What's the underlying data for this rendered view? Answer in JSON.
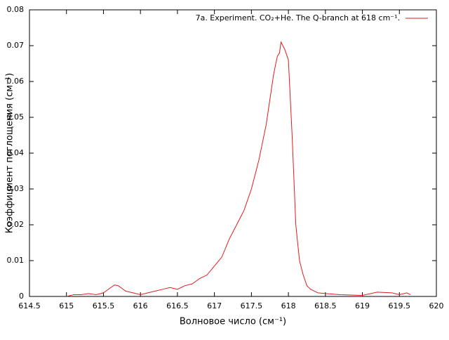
{
  "chart_data": {
    "type": "line",
    "x_label": "Волновое число (см⁻¹)",
    "y_label": "Коэффициент поглощения (см⁻¹)",
    "xlim": [
      614.5,
      620
    ],
    "ylim": [
      0,
      0.08
    ],
    "xticks": [
      614.5,
      615,
      615.5,
      616,
      616.5,
      617,
      617.5,
      618,
      618.5,
      619,
      619.5,
      620
    ],
    "yticks": [
      0,
      0.01,
      0.02,
      0.03,
      0.04,
      0.05,
      0.06,
      0.07,
      0.08
    ],
    "legend": "top-right",
    "series": [
      {
        "name": "7a. Experiment. CO₂+He. The Q-branch at 618 cm⁻¹.",
        "color": "#e41a1c",
        "x": [
          615.0,
          615.1,
          615.2,
          615.3,
          615.4,
          615.5,
          615.6,
          615.65,
          615.7,
          615.8,
          615.9,
          616.0,
          616.1,
          616.2,
          616.3,
          616.4,
          616.5,
          616.6,
          616.7,
          616.8,
          616.9,
          617.0,
          617.1,
          617.2,
          617.3,
          617.4,
          617.5,
          617.6,
          617.7,
          617.75,
          617.8,
          617.85,
          617.88,
          617.9,
          617.95,
          618.0,
          618.05,
          618.1,
          618.15,
          618.2,
          618.25,
          618.3,
          618.4,
          618.5,
          618.7,
          619.0,
          619.2,
          619.4,
          619.5,
          619.6,
          619.65
        ],
        "values": [
          0.0,
          0.0005,
          0.0005,
          0.0008,
          0.0005,
          0.001,
          0.0025,
          0.0032,
          0.003,
          0.0015,
          0.001,
          0.0005,
          0.001,
          0.0015,
          0.002,
          0.0025,
          0.002,
          0.003,
          0.0035,
          0.005,
          0.006,
          0.0085,
          0.011,
          0.016,
          0.02,
          0.024,
          0.03,
          0.038,
          0.048,
          0.055,
          0.062,
          0.067,
          0.068,
          0.071,
          0.069,
          0.066,
          0.045,
          0.02,
          0.01,
          0.006,
          0.003,
          0.002,
          0.001,
          0.0008,
          0.0005,
          0.0003,
          0.0012,
          0.001,
          0.0005,
          0.001,
          0.0005
        ]
      }
    ]
  }
}
